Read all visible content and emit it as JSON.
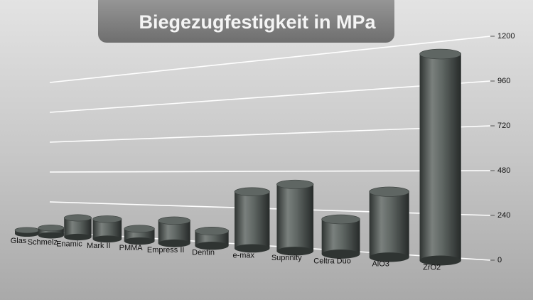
{
  "chart_data": {
    "type": "bar",
    "title": "Biegezugfestigkeit in MPa",
    "categories": [
      "Glas",
      "Schmelz",
      "Enamic",
      "Mark II",
      "PMMA",
      "Empress II",
      "Dentin",
      "e-max",
      "Suprinity",
      "Celtra Duo",
      "AlO3",
      "ZrO2"
    ],
    "values": [
      30,
      60,
      150,
      150,
      90,
      160,
      100,
      370,
      420,
      210,
      380,
      1150
    ],
    "color": "#5f6663",
    "ylim": [
      0,
      1200
    ],
    "yticks": [
      0,
      240,
      480,
      720,
      960,
      1200
    ],
    "grid": true
  }
}
